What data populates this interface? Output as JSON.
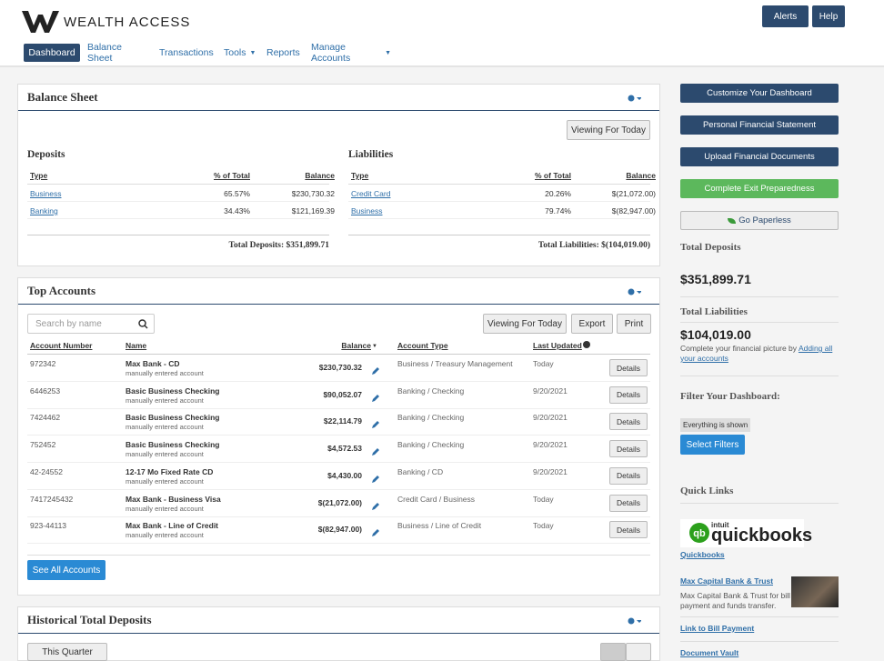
{
  "header": {
    "brand": "WEALTH ACCESS",
    "buttons": [
      "Alerts",
      "Help"
    ]
  },
  "nav": {
    "items": [
      "Dashboard",
      "Balance Sheet",
      "Transactions",
      "Tools",
      "Reports",
      "Manage Accounts"
    ],
    "active": 0
  },
  "balance_sheet": {
    "title": "Balance Sheet",
    "viewing": "Viewing For Today",
    "deposits": {
      "title": "Deposits",
      "columns": [
        "Type",
        "% of Total",
        "Balance"
      ],
      "rows": [
        [
          "Business",
          "65.57%",
          "$230,730.32"
        ],
        [
          "Banking",
          "34.43%",
          "$121,169.39"
        ]
      ],
      "total": "Total Deposits: $351,899.71"
    },
    "liabilities": {
      "title": "Liabilities",
      "columns": [
        "Type",
        "% of Total",
        "Balance"
      ],
      "rows": [
        [
          "Credit Card",
          "20.26%",
          "$(21,072.00)"
        ],
        [
          "Business",
          "79.74%",
          "$(82,947.00)"
        ]
      ],
      "total": "Total Liabilities: $(104,019.00)"
    }
  },
  "top_accounts": {
    "title": "Top Accounts",
    "search_placeholder": "Search by name",
    "buttons": [
      "Viewing For Today",
      "Export",
      "Print"
    ],
    "columns": [
      "Account Number",
      "Name",
      "Balance",
      "Account Type",
      "Last Updated"
    ],
    "details_label": "Details",
    "rows": [
      {
        "number": "972342",
        "name": "Max Bank - CD",
        "note": "manually entered account",
        "balance": "$230,730.32",
        "type": "Business / Treasury Management",
        "updated": "Today"
      },
      {
        "number": "6446253",
        "name": "Basic Business Checking",
        "note": "manually entered account",
        "balance": "$90,052.07",
        "type": "Banking / Checking",
        "updated": "9/20/2021"
      },
      {
        "number": "7424462",
        "name": "Basic Business Checking",
        "note": "manually entered account",
        "balance": "$22,114.79",
        "type": "Banking / Checking",
        "updated": "9/20/2021"
      },
      {
        "number": "752452",
        "name": "Basic Business Checking",
        "note": "manually entered account",
        "balance": "$4,572.53",
        "type": "Banking / Checking",
        "updated": "9/20/2021"
      },
      {
        "number": "42-24552",
        "name": "12-17 Mo Fixed Rate CD",
        "note": "manually entered account",
        "balance": "$4,430.00",
        "type": "Banking / CD",
        "updated": "9/20/2021"
      },
      {
        "number": "7417245432",
        "name": "Max Bank - Business Visa",
        "note": "manually entered account",
        "balance": "$(21,072.00)",
        "type": "Credit Card / Business",
        "updated": "Today"
      },
      {
        "number": "923-44113",
        "name": "Max Bank - Line of Credit",
        "note": "manually entered account",
        "balance": "$(82,947.00)",
        "type": "Business / Line of Credit",
        "updated": "Today"
      }
    ],
    "see_all": "See All Accounts"
  },
  "historical": {
    "title": "Historical Total Deposits",
    "period": "This Quarter"
  },
  "sidebar": {
    "buttons": [
      "Customize Your Dashboard",
      "Personal Financial Statement",
      "Upload Financial Documents",
      "Complete Exit Preparedness",
      "Go Paperless"
    ],
    "total_deposits": {
      "label": "Total Deposits",
      "value": "$351,899.71"
    },
    "total_liabilities": {
      "label": "Total Liabilities",
      "value": "$104,019.00"
    },
    "note": "Complete your financial picture by ",
    "note_link": "Adding all your accounts",
    "filter_title": "Filter Your Dashboard:",
    "filter_badge": "Everything is shown",
    "filter_button": "Select Filters",
    "quick_links_title": "Quick Links",
    "qb_small": "intuit",
    "qb_big": "quickbooks",
    "links": [
      {
        "title": "Quickbooks"
      },
      {
        "title": "Max Capital Bank & Trust",
        "desc": "Max Capital Bank & Trust for bill payment and funds transfer."
      },
      {
        "title": "Link to Bill Payment"
      },
      {
        "title": "Document Vault"
      }
    ]
  }
}
